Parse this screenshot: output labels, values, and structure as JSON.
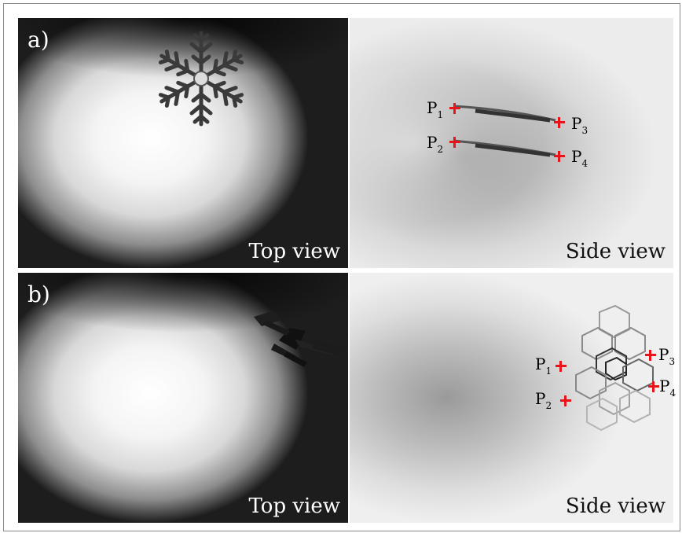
{
  "panels": {
    "a": {
      "label": "a)",
      "top_view_label": "Top view",
      "side_view_label": "Side view",
      "points": [
        {
          "name": "P",
          "sub": "1"
        },
        {
          "name": "P",
          "sub": "2"
        },
        {
          "name": "P",
          "sub": "3"
        },
        {
          "name": "P",
          "sub": "4"
        }
      ]
    },
    "b": {
      "label": "b)",
      "top_view_label": "Top view",
      "side_view_label": "Side view",
      "points": [
        {
          "name": "P",
          "sub": "1"
        },
        {
          "name": "P",
          "sub": "2"
        },
        {
          "name": "P",
          "sub": "3"
        },
        {
          "name": "P",
          "sub": "4"
        }
      ]
    }
  },
  "colors": {
    "marker": "#e8141a"
  }
}
